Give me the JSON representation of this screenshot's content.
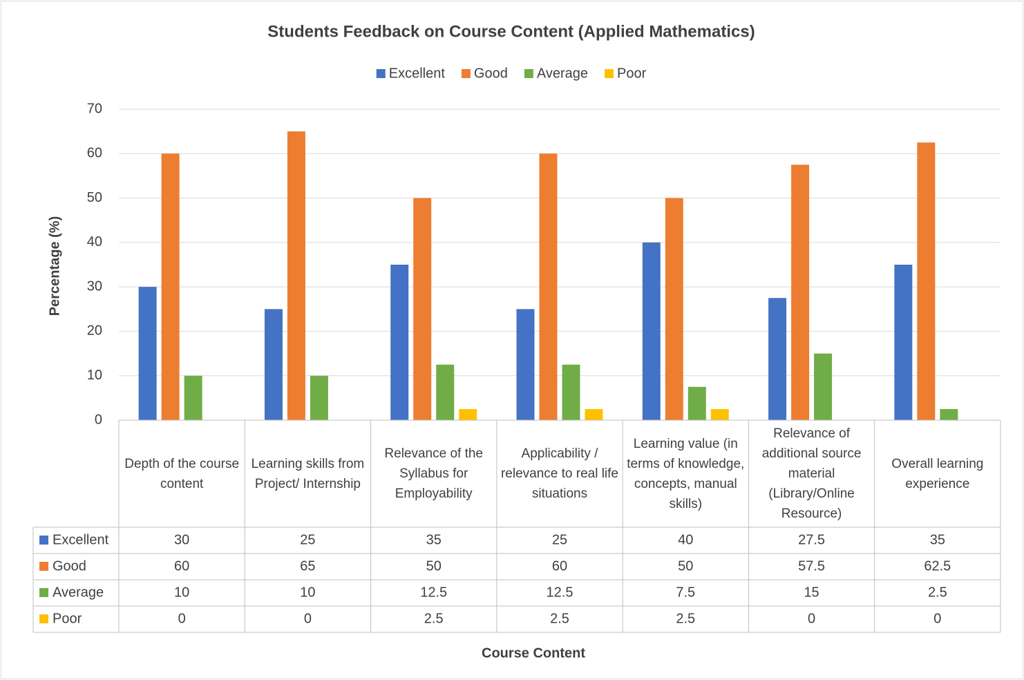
{
  "chart_data": {
    "type": "bar",
    "title": "Students Feedback on Course Content (Applied Mathematics)",
    "x_label": "Course Content",
    "y_label": "Percentage (%)",
    "categories": [
      "Depth of the course content",
      "Learning skills from Project/ Internship",
      "Relevance of the Syllabus for Employability",
      "Applicability / relevance to real life situations",
      "Learning value (in terms of knowledge, concepts, manual skills)",
      "Relevance of additional source material (Library/Online Resource)",
      "Overall learning experience"
    ],
    "series": [
      {
        "name": "Excellent",
        "color": "#4472c4",
        "values": [
          30,
          25,
          35,
          25,
          40,
          27.5,
          35
        ]
      },
      {
        "name": "Good",
        "color": "#ed7d31",
        "values": [
          60,
          65,
          50,
          60,
          50,
          57.5,
          62.5
        ]
      },
      {
        "name": "Average",
        "color": "#70ad47",
        "values": [
          10,
          10,
          12.5,
          12.5,
          7.5,
          15,
          2.5
        ]
      },
      {
        "name": "Poor",
        "color": "#ffc000",
        "values": [
          0,
          0,
          2.5,
          2.5,
          2.5,
          0,
          0
        ]
      }
    ],
    "ylim": [
      0,
      70
    ],
    "yticks": [
      0,
      10,
      20,
      30,
      40,
      50,
      60,
      70
    ],
    "grid": true,
    "legend": "top",
    "data_table": true
  }
}
